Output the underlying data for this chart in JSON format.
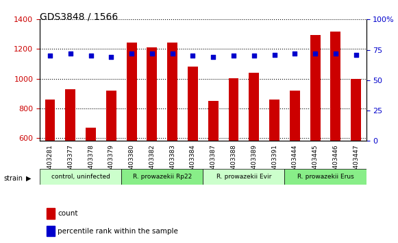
{
  "title": "GDS3848 / 1566",
  "samples": [
    "GSM403281",
    "GSM403377",
    "GSM403378",
    "GSM403379",
    "GSM403380",
    "GSM403382",
    "GSM403383",
    "GSM403384",
    "GSM403387",
    "GSM403388",
    "GSM403389",
    "GSM403391",
    "GSM403444",
    "GSM403445",
    "GSM403446",
    "GSM403447"
  ],
  "counts": [
    860,
    930,
    670,
    920,
    1245,
    1210,
    1245,
    1080,
    850,
    1005,
    1040,
    860,
    920,
    1295,
    1320,
    1000
  ],
  "percentiles": [
    70,
    72,
    70,
    69,
    72,
    72,
    72,
    70,
    69,
    70,
    70,
    71,
    72,
    72,
    72,
    71
  ],
  "ylim_left": [
    580,
    1400
  ],
  "ylim_right": [
    0,
    100
  ],
  "yticks_left": [
    600,
    800,
    1000,
    1200,
    1400
  ],
  "yticks_right": [
    0,
    25,
    50,
    75,
    100
  ],
  "bar_color": "#cc0000",
  "dot_color": "#0000cc",
  "grid_color": "#000000",
  "background_color": "#ffffff",
  "strain_groups": [
    {
      "label": "control, uninfected",
      "start": 0,
      "end": 3,
      "color": "#aaffaa"
    },
    {
      "label": "R. prowazekii Rp22",
      "start": 4,
      "end": 7,
      "color": "#66ff66"
    },
    {
      "label": "R. prowazekii Evir",
      "start": 8,
      "end": 11,
      "color": "#aaffaa"
    },
    {
      "label": "R. prowazekii Erus",
      "start": 12,
      "end": 15,
      "color": "#66ff66"
    }
  ],
  "xlabel_strain": "strain",
  "legend_count": "count",
  "legend_percentile": "percentile rank within the sample",
  "tick_label_color_left": "#cc0000",
  "tick_label_color_right": "#0000cc"
}
